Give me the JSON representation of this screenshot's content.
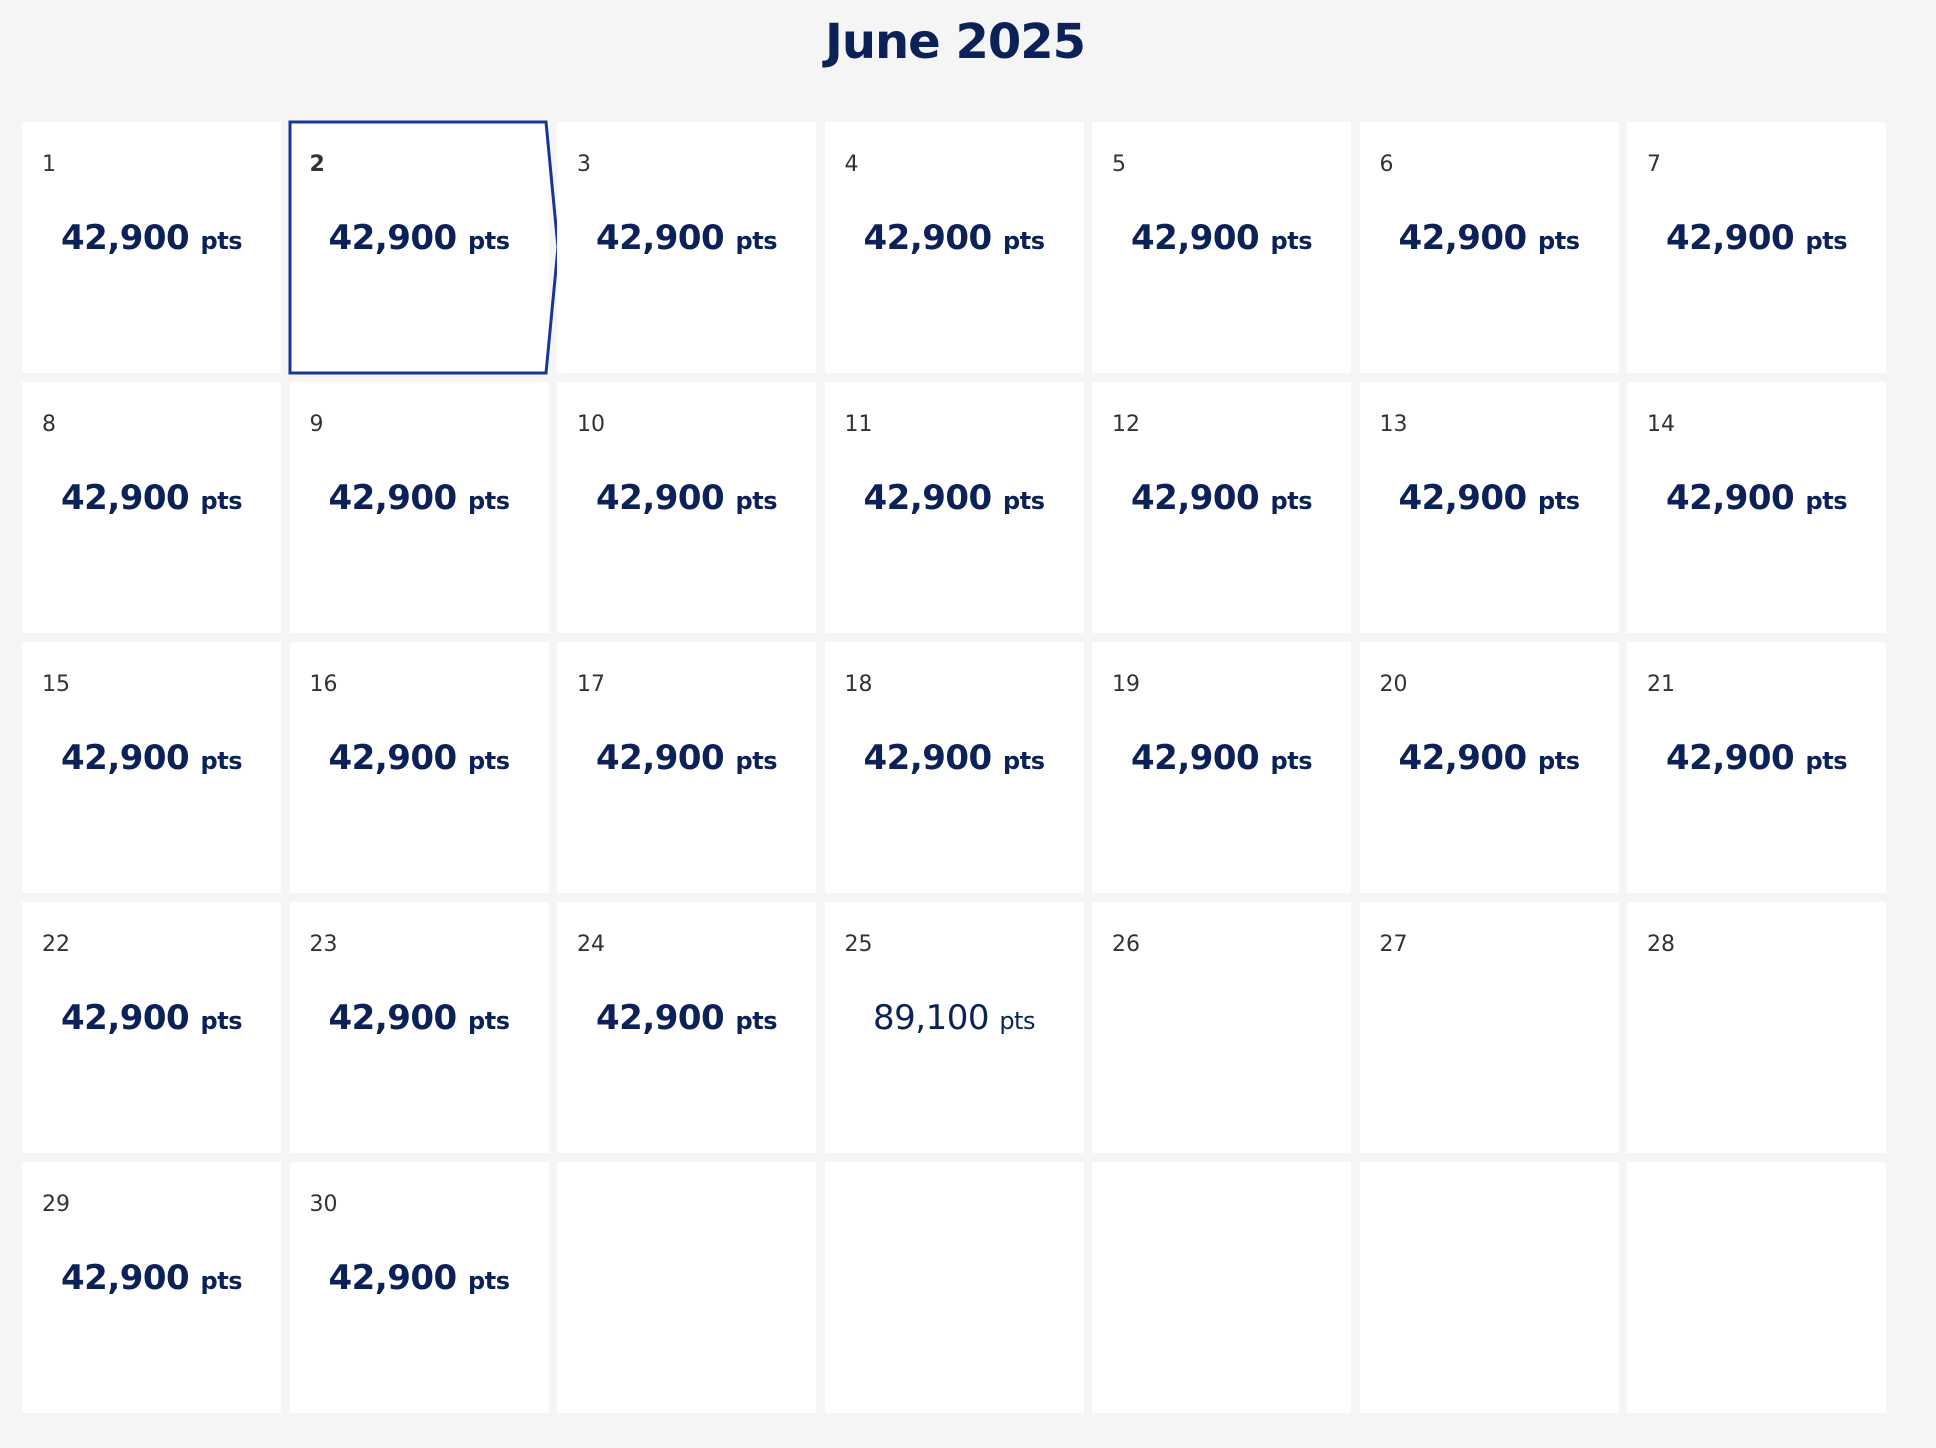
{
  "calendar": {
    "title": "June 2025",
    "selected_index": 1,
    "days": [
      {
        "day": "1",
        "points": "42,900",
        "unit": "pts"
      },
      {
        "day": "2",
        "points": "42,900",
        "unit": "pts"
      },
      {
        "day": "3",
        "points": "42,900",
        "unit": "pts"
      },
      {
        "day": "4",
        "points": "42,900",
        "unit": "pts"
      },
      {
        "day": "5",
        "points": "42,900",
        "unit": "pts"
      },
      {
        "day": "6",
        "points": "42,900",
        "unit": "pts"
      },
      {
        "day": "7",
        "points": "42,900",
        "unit": "pts"
      },
      {
        "day": "8",
        "points": "42,900",
        "unit": "pts"
      },
      {
        "day": "9",
        "points": "42,900",
        "unit": "pts"
      },
      {
        "day": "10",
        "points": "42,900",
        "unit": "pts"
      },
      {
        "day": "11",
        "points": "42,900",
        "unit": "pts"
      },
      {
        "day": "12",
        "points": "42,900",
        "unit": "pts"
      },
      {
        "day": "13",
        "points": "42,900",
        "unit": "pts"
      },
      {
        "day": "14",
        "points": "42,900",
        "unit": "pts"
      },
      {
        "day": "15",
        "points": "42,900",
        "unit": "pts"
      },
      {
        "day": "16",
        "points": "42,900",
        "unit": "pts"
      },
      {
        "day": "17",
        "points": "42,900",
        "unit": "pts"
      },
      {
        "day": "18",
        "points": "42,900",
        "unit": "pts"
      },
      {
        "day": "19",
        "points": "42,900",
        "unit": "pts"
      },
      {
        "day": "20",
        "points": "42,900",
        "unit": "pts"
      },
      {
        "day": "21",
        "points": "42,900",
        "unit": "pts"
      },
      {
        "day": "22",
        "points": "42,900",
        "unit": "pts"
      },
      {
        "day": "23",
        "points": "42,900",
        "unit": "pts"
      },
      {
        "day": "24",
        "points": "42,900",
        "unit": "pts"
      },
      {
        "day": "25",
        "points": "89,100",
        "unit": "pts",
        "weight": "regular"
      },
      {
        "day": "26"
      },
      {
        "day": "27"
      },
      {
        "day": "28"
      },
      {
        "day": "29",
        "points": "42,900",
        "unit": "pts"
      },
      {
        "day": "30",
        "points": "42,900",
        "unit": "pts"
      }
    ]
  }
}
